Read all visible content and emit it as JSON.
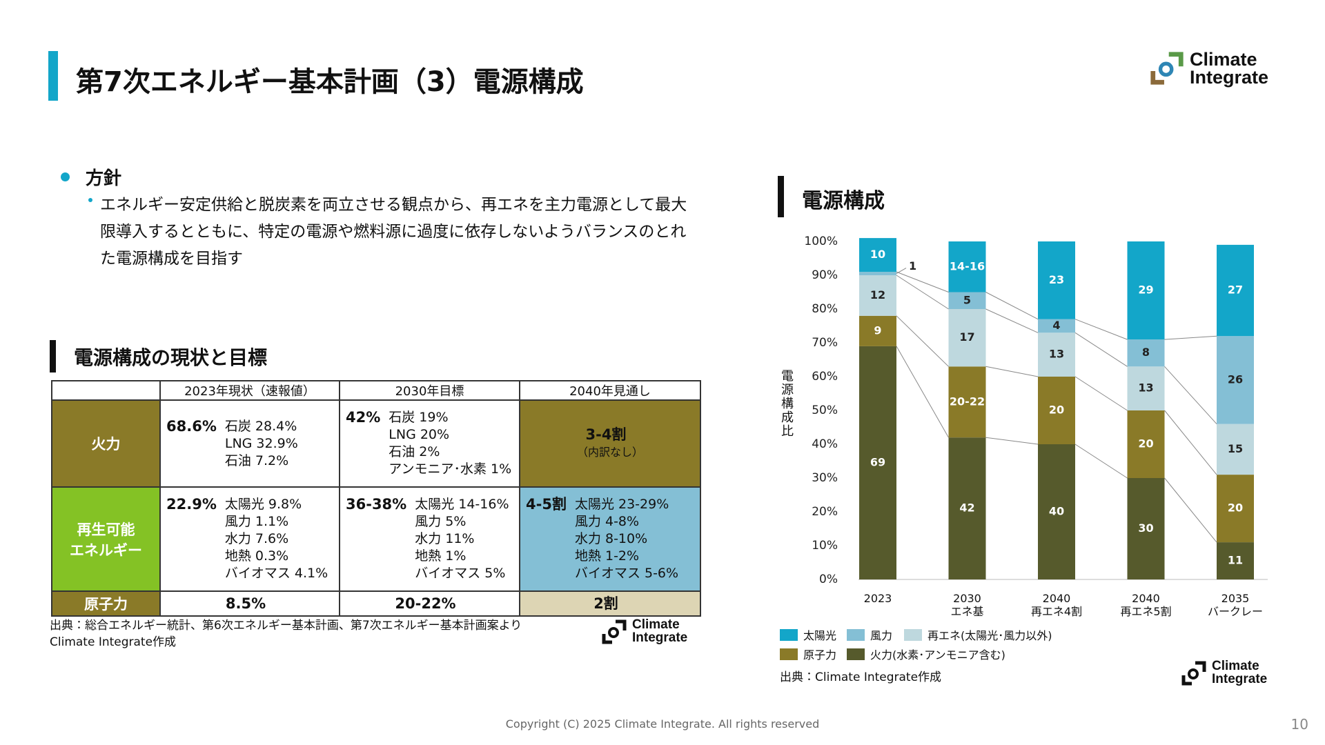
{
  "header": {
    "title": "第7次エネルギー基本計画（3）電源構成"
  },
  "logo": {
    "line1": "Climate",
    "line2": "Integrate"
  },
  "policy": {
    "heading": "方針",
    "bullets": [
      "エネルギー安定供給と脱炭素を両立させる観点から、再エネを主力電源として最大限導入するとともに、特定の電源や燃料源に過度に依存しないようバランスのとれた電源構成を目指す"
    ]
  },
  "table": {
    "title": "電源構成の現状と目標",
    "columns": [
      "2023年現状（速報値）",
      "2030年目標",
      "2040年見通し"
    ],
    "rows": [
      {
        "label": "火力",
        "cells": [
          {
            "main": "68.6%",
            "details": [
              "石炭 28.4%",
              "LNG 32.9%",
              "石油 7.2%"
            ]
          },
          {
            "main": "42%",
            "details": [
              "石炭 19%",
              "LNG 20%",
              "石油 2%",
              "アンモニア･水素 1%"
            ]
          },
          {
            "main": "3-4割",
            "note": "（内訳なし）"
          }
        ]
      },
      {
        "label": "再生可能\nエネルギー",
        "cells": [
          {
            "main": "22.9%",
            "details": [
              "太陽光 9.8%",
              "風力 1.1%",
              "水力 7.6%",
              "地熱 0.3%",
              "バイオマス 4.1%"
            ]
          },
          {
            "main": "36-38%",
            "details": [
              "太陽光 14-16%",
              "風力 5%",
              "水力 11%",
              "地熱 1%",
              "バイオマス 5%"
            ]
          },
          {
            "main": "4-5割",
            "details": [
              "太陽光 23-29%",
              "風力 4-8%",
              "水力 8-10%",
              "地熱 1-2%",
              "バイオマス 5-6%"
            ]
          }
        ]
      },
      {
        "label": "原子力",
        "cells": [
          {
            "main": "8.5%"
          },
          {
            "main": "20-22%"
          },
          {
            "main": "2割"
          }
        ]
      }
    ],
    "source": [
      "出典：総合エネルギー統計、第6次エネルギー基本計画、第7次エネルギー基本計画案より",
      "Climate Integrate作成"
    ]
  },
  "chart_data": {
    "type": "stacked_bar",
    "title": "電源構成",
    "y_label": "電源構成比",
    "categories": [
      "2023",
      "2030\nエネ基",
      "2040\n再エネ4割",
      "2040\n再エネ5割",
      "2035\nバークレー"
    ],
    "series": [
      {
        "name": "火力(水素･アンモニア含む)",
        "color": "#565a2c",
        "values": [
          69,
          42,
          40,
          30,
          11
        ]
      },
      {
        "name": "原子力",
        "color": "#8a7a28",
        "values": [
          9,
          21,
          20,
          20,
          20
        ],
        "value_labels": [
          null,
          "20-22",
          null,
          null,
          null
        ]
      },
      {
        "name": "再エネ(太陽光･風力以外)",
        "color": "#bed8de",
        "values": [
          12,
          17,
          13,
          13,
          15
        ]
      },
      {
        "name": "風力",
        "color": "#84bfd5",
        "values": [
          1,
          5,
          4,
          8,
          26
        ]
      },
      {
        "name": "太陽光",
        "color": "#13a6c9",
        "values": [
          10,
          15,
          23,
          29,
          27
        ],
        "value_labels": [
          null,
          "14-16",
          null,
          null,
          null
        ]
      }
    ],
    "ylim": [
      0,
      100
    ],
    "yticks": [
      {
        "value": 0,
        "label": "0%"
      },
      {
        "value": 10,
        "label": "10%"
      },
      {
        "value": 20,
        "label": "20%"
      },
      {
        "value": 30,
        "label": "30%"
      },
      {
        "value": 40,
        "label": "40%"
      },
      {
        "value": 50,
        "label": "50%"
      },
      {
        "value": 60,
        "label": "60%"
      },
      {
        "value": 70,
        "label": "70%"
      },
      {
        "value": 80,
        "label": "80%"
      },
      {
        "value": 90,
        "label": "90%"
      },
      {
        "value": 100,
        "label": "100%"
      }
    ],
    "source": "出典：Climate Integrate作成"
  },
  "footer": {
    "copyright": "Copyright (C) 2025 Climate Integrate. All rights reserved",
    "page": 10
  }
}
